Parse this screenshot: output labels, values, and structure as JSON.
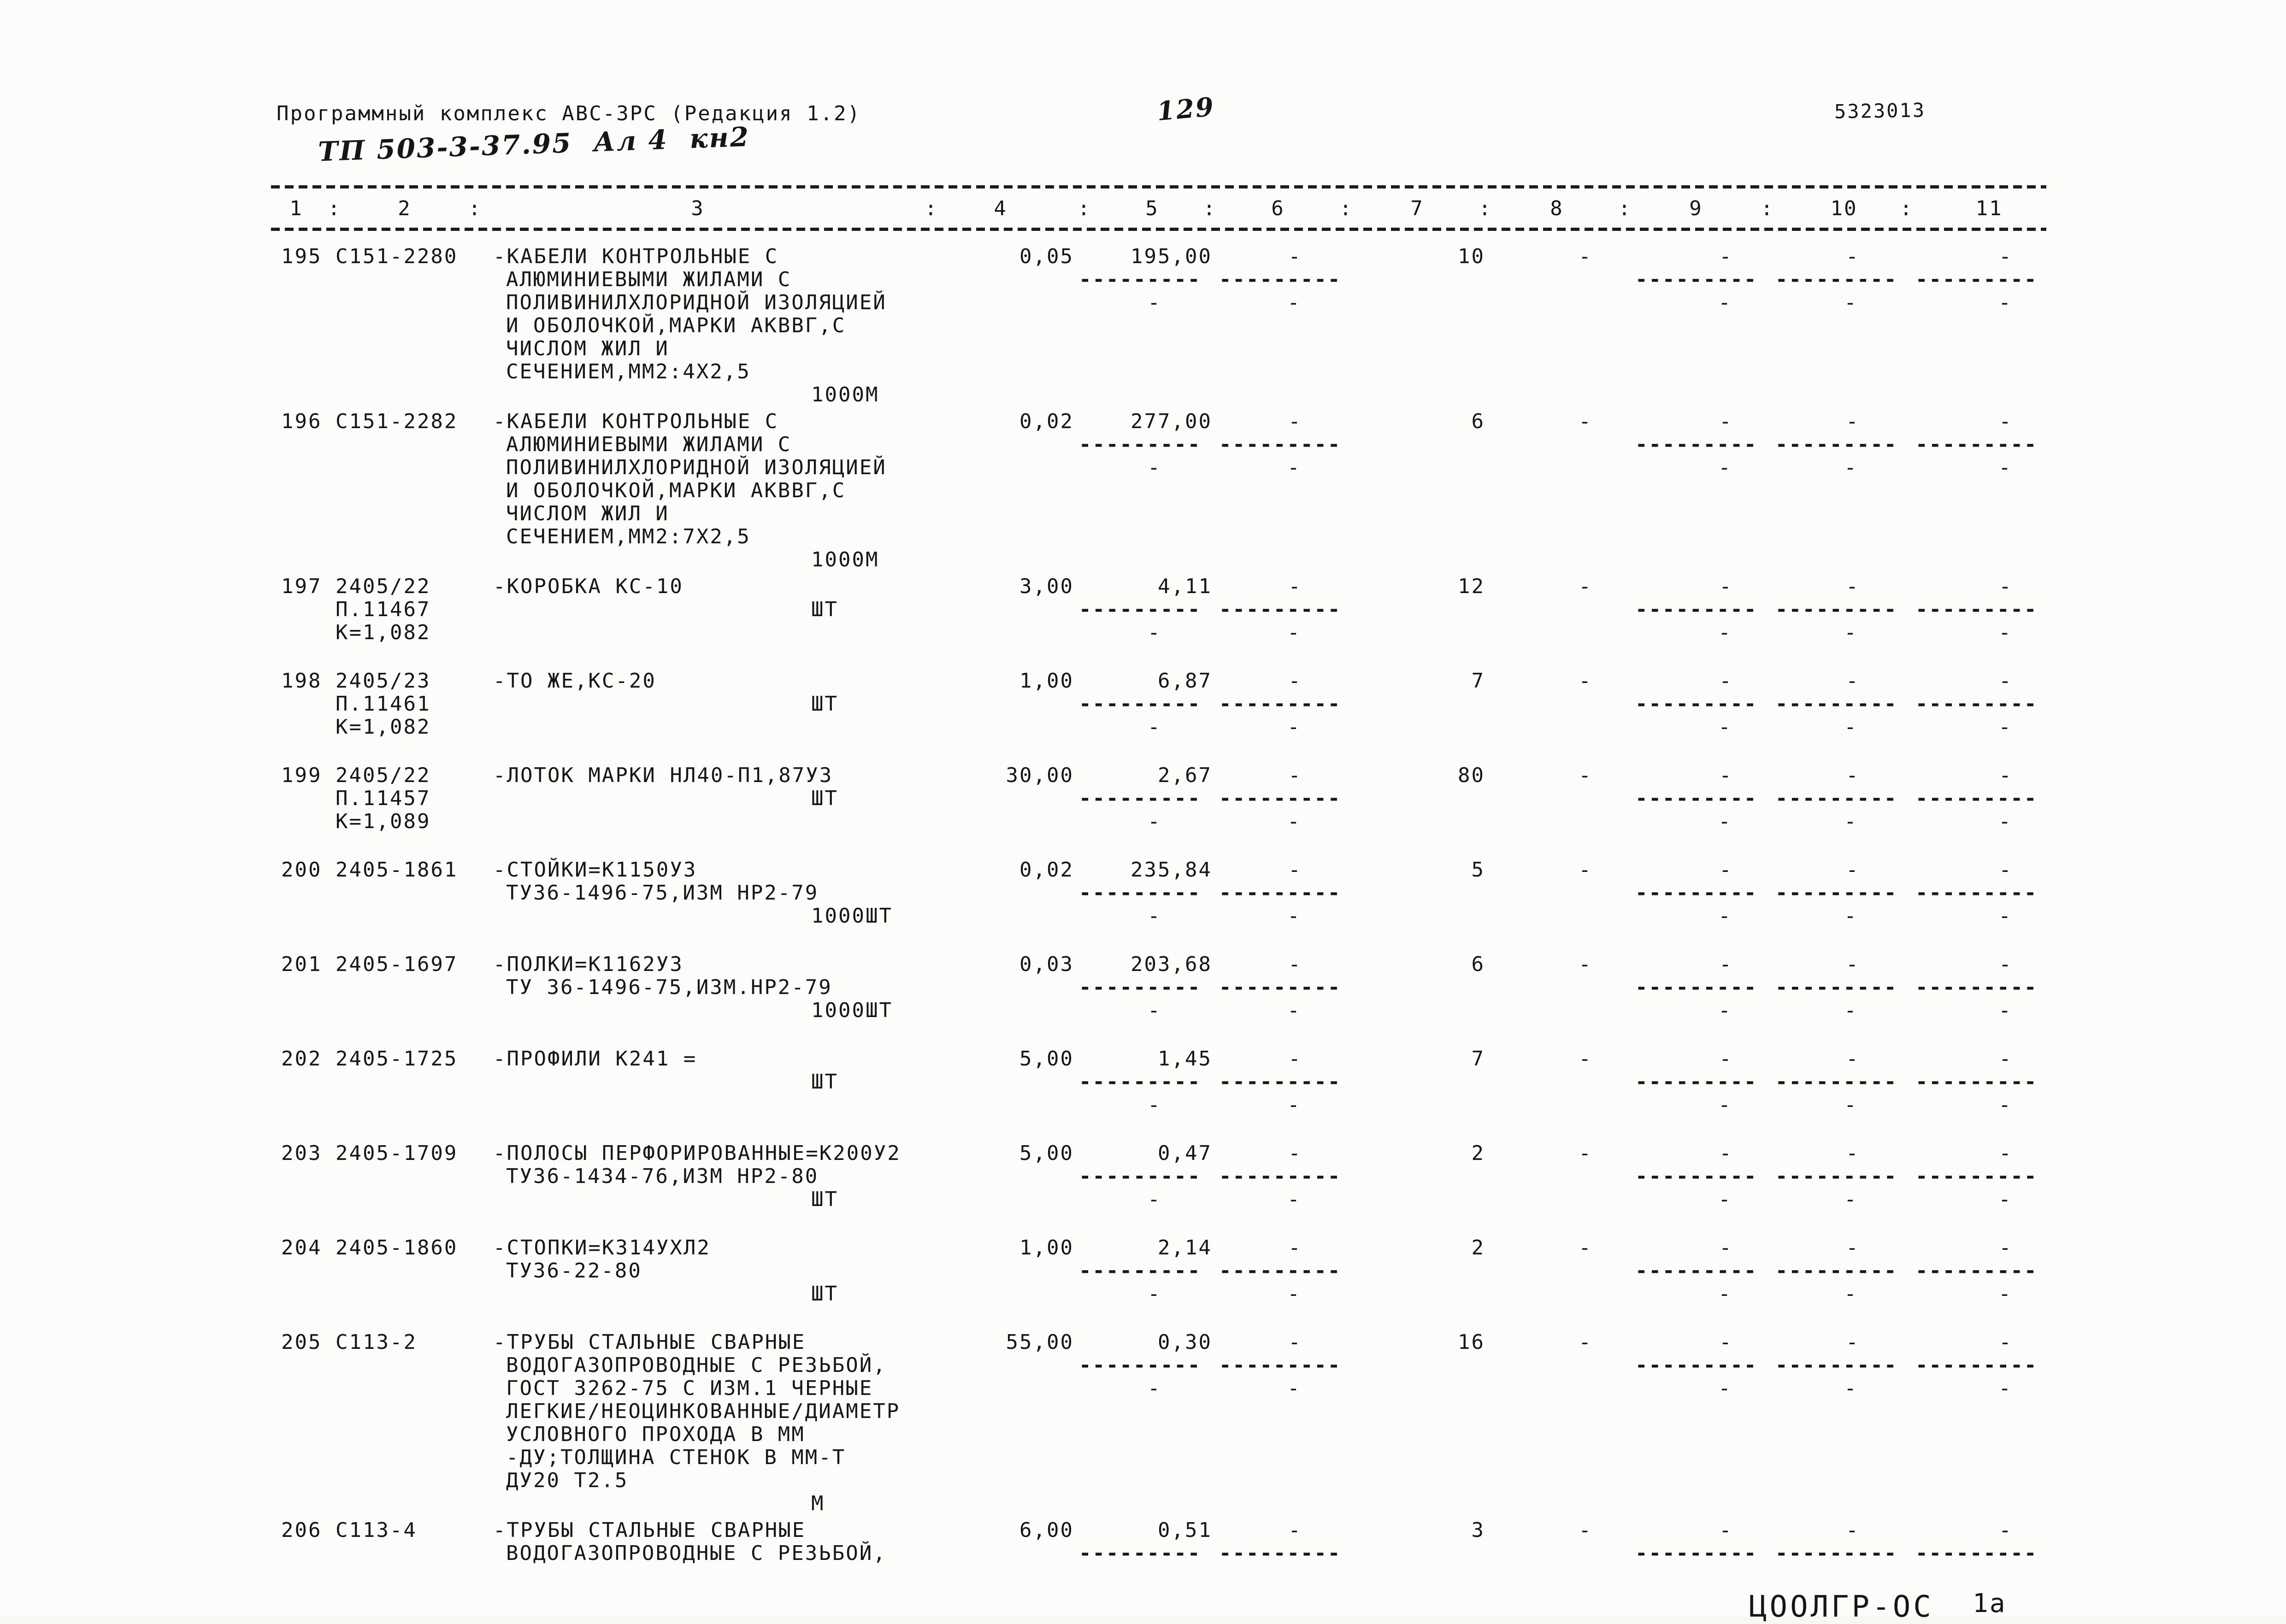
{
  "header": {
    "program_title": "Программный комплекс АВС-3РС (Редакция 1.2)",
    "handwritten_code": "ТП 503-3-37.95  Ал 4  кн2",
    "page_number": "129",
    "stamp_number": "5323013",
    "footer_stamp": "ЦООЛГР-ОС",
    "footer_stamp_page": "1а"
  },
  "table": {
    "columns": [
      "1",
      "2",
      "3",
      "4",
      "5",
      "6",
      "7",
      "8",
      "9",
      "10",
      "11"
    ],
    "symbols": {
      "dash": "-",
      "underline": "---------",
      "colon": ":"
    },
    "rows": [
      {
        "num": "195",
        "code": "С151-2280",
        "code_extra": [],
        "desc": [
          "-КАБЕЛИ КОНТРОЛЬНЫЕ С",
          "АЛЮМИНИЕВЫМИ ЖИЛАМИ С",
          "ПОЛИВИНИЛХЛОРИДНОЙ ИЗОЛЯЦИЕЙ",
          "И ОБОЛОЧКОЙ,МАРКИ АКВВГ,С",
          "ЧИСЛОМ ЖИЛ И",
          "СЕЧЕНИЕМ,ММ2:4Х2,5"
        ],
        "unit": "1000М",
        "unit_line": 6,
        "qty": "0,05",
        "price": "195,00",
        "count": "10"
      },
      {
        "num": "196",
        "code": "С151-2282",
        "code_extra": [],
        "desc": [
          "-КАБЕЛИ КОНТРОЛЬНЫЕ С",
          "АЛЮМИНИЕВЫМИ ЖИЛАМИ С",
          "ПОЛИВИНИЛХЛОРИДНОЙ ИЗОЛЯЦИЕЙ",
          "И ОБОЛОЧКОЙ,МАРКИ АКВВГ,С",
          "ЧИСЛОМ ЖИЛ И",
          "СЕЧЕНИЕМ,ММ2:7Х2,5"
        ],
        "unit": "1000М",
        "unit_line": 6,
        "qty": "0,02",
        "price": "277,00",
        "count": "6"
      },
      {
        "num": "197",
        "code": "2405/22",
        "code_extra": [
          "П.11467",
          "К=1,082"
        ],
        "desc": [
          "-КОРОБКА КС-10"
        ],
        "unit": "ШТ",
        "unit_line": 1,
        "qty": "3,00",
        "price": "4,11",
        "count": "12"
      },
      {
        "num": "198",
        "code": "2405/23",
        "code_extra": [
          "П.11461",
          "К=1,082"
        ],
        "desc": [
          "-ТО ЖЕ,КС-20"
        ],
        "unit": "ШТ",
        "unit_line": 1,
        "qty": "1,00",
        "price": "6,87",
        "count": "7"
      },
      {
        "num": "199",
        "code": "2405/22",
        "code_extra": [
          "П.11457",
          "К=1,089"
        ],
        "desc": [
          "-ЛОТОК МАРКИ НЛ40-П1,87У3"
        ],
        "unit": "ШТ",
        "unit_line": 1,
        "qty": "30,00",
        "price": "2,67",
        "count": "80"
      },
      {
        "num": "200",
        "code": "2405-1861",
        "code_extra": [],
        "desc": [
          "-СТОЙКИ=К1150У3",
          "ТУ36-1496-75,ИЗМ НР2-79"
        ],
        "unit": "1000ШТ",
        "unit_line": 2,
        "qty": "0,02",
        "price": "235,84",
        "count": "5"
      },
      {
        "num": "201",
        "code": "2405-1697",
        "code_extra": [],
        "desc": [
          "-ПОЛКИ=К1162У3",
          "ТУ 36-1496-75,ИЗМ.НР2-79"
        ],
        "unit": "1000ШТ",
        "unit_line": 2,
        "qty": "0,03",
        "price": "203,68",
        "count": "6"
      },
      {
        "num": "202",
        "code": "2405-1725",
        "code_extra": [],
        "desc": [
          "-ПРОФИЛИ К241 ="
        ],
        "unit": "ШТ",
        "unit_line": 1,
        "qty": "5,00",
        "price": "1,45",
        "count": "7"
      },
      {
        "num": "203",
        "code": "2405-1709",
        "code_extra": [],
        "desc": [
          "-ПОЛОСЫ ПЕРФОРИРОВАННЫЕ=К200У2",
          "ТУ36-1434-76,ИЗМ НР2-80"
        ],
        "unit": "ШТ",
        "unit_line": 2,
        "qty": "5,00",
        "price": "0,47",
        "count": "2"
      },
      {
        "num": "204",
        "code": "2405-1860",
        "code_extra": [],
        "desc": [
          "-СТОПКИ=К314УХЛ2",
          "ТУ36-22-80"
        ],
        "unit": "ШТ",
        "unit_line": 2,
        "qty": "1,00",
        "price": "2,14",
        "count": "2"
      },
      {
        "num": "205",
        "code": "С113-2",
        "code_extra": [],
        "desc": [
          "-ТРУБЫ СТАЛЬНЫЕ СВАРНЫЕ",
          "ВОДОГАЗОПРОВОДНЫЕ С РЕЗЬБОЙ,",
          "ГОСТ 3262-75 С ИЗМ.1 ЧЕРНЫЕ",
          "ЛЕГКИЕ/НЕОЦИНКОВАННЫЕ/ДИАМЕТР",
          "УСЛОВНОГО ПРОХОДА В ММ",
          "-ДУ;ТОЛЩИНА СТЕНОК В ММ-Т",
          "ДУ20 Т2.5"
        ],
        "unit": "М",
        "unit_line": 7,
        "qty": "55,00",
        "price": "0,30",
        "count": "16"
      },
      {
        "num": "206",
        "code": "С113-4",
        "code_extra": [],
        "desc": [
          "-ТРУБЫ СТАЛЬНЫЕ СВАРНЫЕ",
          "ВОДОГАЗОПРОВОДНЫЕ С РЕЗЬБОЙ,"
        ],
        "unit": null,
        "unit_line": null,
        "qty": "6,00",
        "price": "0,51",
        "count": "3",
        "truncated": true
      }
    ]
  }
}
